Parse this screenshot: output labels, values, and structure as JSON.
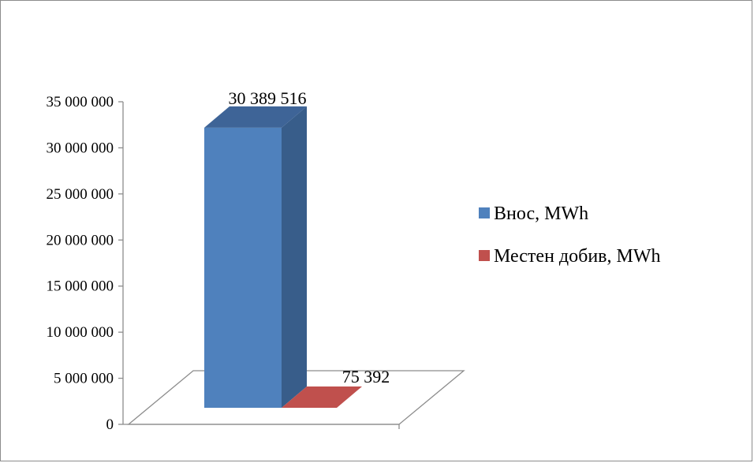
{
  "chart_data": {
    "type": "bar",
    "style": "3d-clustered-column",
    "categories": [
      ""
    ],
    "series": [
      {
        "name": "Внос, MWh",
        "values": [
          30389516
        ],
        "value_label": "30 389 516",
        "color": "#4F81BD",
        "side_color": "#385D8A",
        "top_color": "#3E6497"
      },
      {
        "name": "Местен добив, MWh",
        "values": [
          75392
        ],
        "value_label": "75 392",
        "color": "#C0504D",
        "side_color": "#8C3836",
        "top_color": "#A04441"
      }
    ],
    "yaxis": {
      "min": 0,
      "max": 35000000,
      "ticks": [
        {
          "value": 0,
          "label": "0"
        },
        {
          "value": 5000000,
          "label": "5 000 000"
        },
        {
          "value": 10000000,
          "label": "10 000 000"
        },
        {
          "value": 15000000,
          "label": "15 000 000"
        },
        {
          "value": 20000000,
          "label": "20 000 000"
        },
        {
          "value": 25000000,
          "label": "25 000 000"
        },
        {
          "value": 30000000,
          "label": "30 000 000"
        },
        {
          "value": 35000000,
          "label": "35 000 000"
        }
      ]
    },
    "grid": false,
    "legend_position": "right"
  }
}
